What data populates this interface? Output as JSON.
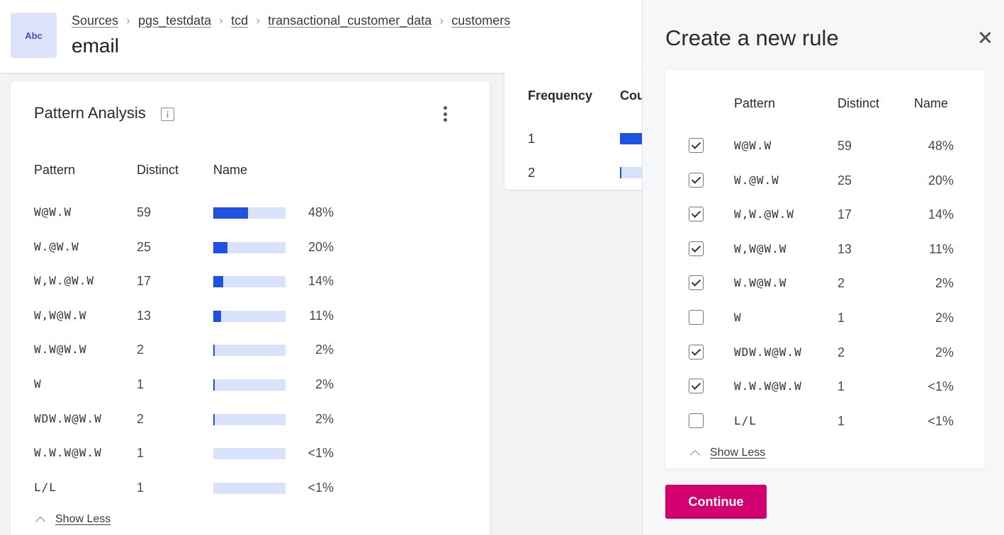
{
  "header": {
    "type_icon_label": "Abc",
    "breadcrumbs": [
      "Sources",
      "pgs_testdata",
      "tcd",
      "transactional_customer_data",
      "customers"
    ],
    "title": "email"
  },
  "pattern_card": {
    "title": "Pattern Analysis",
    "columns": {
      "pattern": "Pattern",
      "distinct": "Distinct",
      "name": "Name"
    },
    "rows": [
      {
        "pattern": "W@W.W",
        "distinct": "59",
        "pct": "48%",
        "fraction": 0.48
      },
      {
        "pattern": "W.@W.W",
        "distinct": "25",
        "pct": "20%",
        "fraction": 0.2
      },
      {
        "pattern": "W,W.@W.W",
        "distinct": "17",
        "pct": "14%",
        "fraction": 0.14
      },
      {
        "pattern": "W,W@W.W",
        "distinct": "13",
        "pct": "11%",
        "fraction": 0.11
      },
      {
        "pattern": "W.W@W.W",
        "distinct": "2",
        "pct": "2%",
        "fraction": 0.02
      },
      {
        "pattern": "W",
        "distinct": "1",
        "pct": "2%",
        "fraction": 0.02
      },
      {
        "pattern": "WDW.W@W.W",
        "distinct": "2",
        "pct": "2%",
        "fraction": 0.02
      },
      {
        "pattern": "W.W.W@W.W",
        "distinct": "1",
        "pct": "<1%",
        "fraction": 0.0
      },
      {
        "pattern": "L/L",
        "distinct": "1",
        "pct": "<1%",
        "fraction": 0.0
      }
    ],
    "show_less_label": "Show Less"
  },
  "frequency_card": {
    "columns": [
      "Frequency",
      "Cou"
    ],
    "rows": [
      {
        "frequency": "1"
      },
      {
        "frequency": "2"
      }
    ]
  },
  "panel": {
    "title": "Create a new rule",
    "columns": {
      "pattern": "Pattern",
      "distinct": "Distinct",
      "name": "Name"
    },
    "rows": [
      {
        "checked": true,
        "pattern": "W@W.W",
        "distinct": "59",
        "pct": "48%"
      },
      {
        "checked": true,
        "pattern": "W.@W.W",
        "distinct": "25",
        "pct": "20%"
      },
      {
        "checked": true,
        "pattern": "W,W.@W.W",
        "distinct": "17",
        "pct": "14%"
      },
      {
        "checked": true,
        "pattern": "W,W@W.W",
        "distinct": "13",
        "pct": "11%"
      },
      {
        "checked": true,
        "pattern": "W.W@W.W",
        "distinct": "2",
        "pct": "2%"
      },
      {
        "checked": false,
        "pattern": "W",
        "distinct": "1",
        "pct": "2%"
      },
      {
        "checked": true,
        "pattern": "WDW.W@W.W",
        "distinct": "2",
        "pct": "2%"
      },
      {
        "checked": true,
        "pattern": "W.W.W@W.W",
        "distinct": "1",
        "pct": "<1%"
      },
      {
        "checked": false,
        "pattern": "L/L",
        "distinct": "1",
        "pct": "<1%"
      }
    ],
    "show_less_label": "Show Less",
    "continue_label": "Continue"
  },
  "colors": {
    "bar_fill": "#1f52e0",
    "bar_track": "#d9e2fb",
    "continue_button": "#d4006f",
    "type_icon_bg": "#dde3fb"
  },
  "icons": [
    "info-icon",
    "kebab-menu-icon",
    "chevron-up-icon",
    "close-icon",
    "chevron-right-icon"
  ]
}
